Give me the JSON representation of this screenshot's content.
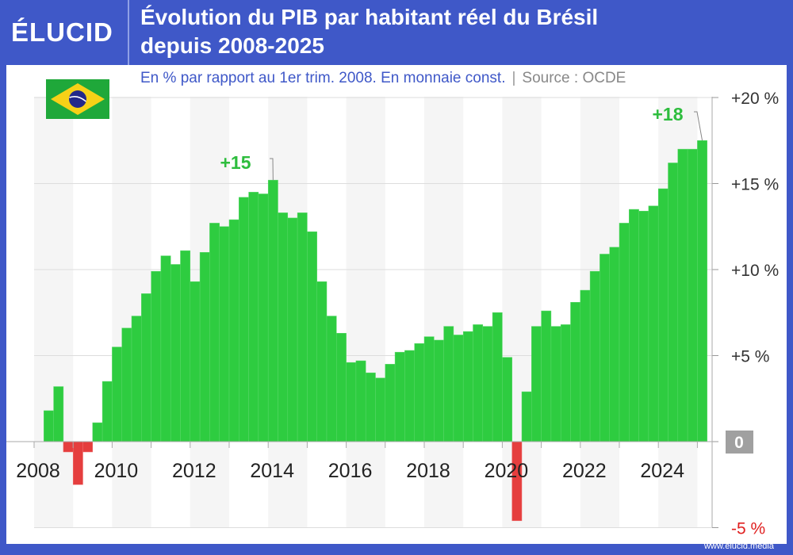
{
  "header": {
    "logo": "ÉLUCID",
    "title_line1": "Évolution du PIB par habitant réel du Brésil",
    "title_line2": "depuis 2008-2025"
  },
  "subtitle": {
    "text": "En % par rapport au 1er trim. 2008. En monnaie const.",
    "separator": "|",
    "source": "Source : OCDE"
  },
  "footer": {
    "url": "www.elucid.media"
  },
  "flag": {
    "country": "brazil-flag-icon"
  },
  "colors": {
    "positive": "#2ecc40",
    "negative": "#e53e3e",
    "brand": "#3f58c8",
    "band": "#f5f5f5"
  },
  "chart_data": {
    "type": "bar",
    "title": "Évolution du PIB par habitant réel du Brésil depuis 2008-2025",
    "ylabel": "En % par rapport au 1er trim. 2008",
    "ylim": [
      -5,
      20
    ],
    "yticks": [
      {
        "value": 20,
        "label": "+20 %"
      },
      {
        "value": 15,
        "label": "+15 %"
      },
      {
        "value": 10,
        "label": "+10 %"
      },
      {
        "value": 5,
        "label": "+5 %"
      },
      {
        "value": 0,
        "label": "0"
      },
      {
        "value": -5,
        "label": "-5 %"
      }
    ],
    "xticks": [
      "2008",
      "2010",
      "2012",
      "2014",
      "2016",
      "2018",
      "2020",
      "2022",
      "2024"
    ],
    "grid": true,
    "start": "2008-Q1",
    "frequency": "quarterly",
    "values": [
      0,
      1.8,
      3.2,
      -0.6,
      -2.5,
      -0.6,
      1.1,
      3.5,
      5.5,
      6.6,
      7.3,
      8.6,
      9.9,
      10.8,
      10.3,
      11.1,
      9.3,
      11.0,
      12.7,
      12.5,
      12.9,
      14.2,
      14.5,
      14.4,
      15.2,
      13.3,
      13.0,
      13.3,
      12.2,
      9.3,
      7.3,
      6.3,
      4.6,
      4.7,
      4.0,
      3.7,
      4.5,
      5.2,
      5.3,
      5.7,
      6.1,
      5.9,
      6.7,
      6.2,
      6.4,
      6.8,
      6.7,
      7.5,
      4.9,
      -4.6,
      2.9,
      6.7,
      7.6,
      6.7,
      6.8,
      8.1,
      8.8,
      9.9,
      10.9,
      11.3,
      12.7,
      13.5,
      13.4,
      13.7,
      14.7,
      16.2,
      17.0,
      17.0,
      17.5
    ],
    "annotations": [
      {
        "label": "+15",
        "period": "2014-Q1"
      },
      {
        "label": "+18",
        "period": "2025-Q1"
      }
    ]
  }
}
